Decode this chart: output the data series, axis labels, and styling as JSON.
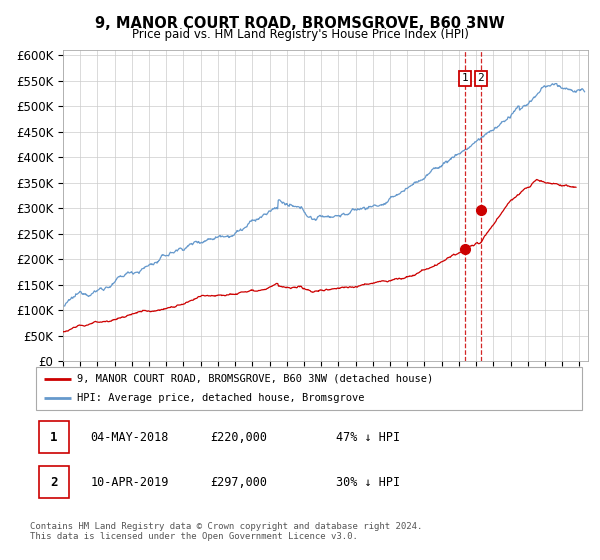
{
  "title": "9, MANOR COURT ROAD, BROMSGROVE, B60 3NW",
  "subtitle": "Price paid vs. HM Land Registry's House Price Index (HPI)",
  "ylabel_ticks": [
    "£0",
    "£50K",
    "£100K",
    "£150K",
    "£200K",
    "£250K",
    "£300K",
    "£350K",
    "£400K",
    "£450K",
    "£500K",
    "£550K",
    "£600K"
  ],
  "ytick_values": [
    0,
    50000,
    100000,
    150000,
    200000,
    250000,
    300000,
    350000,
    400000,
    450000,
    500000,
    550000,
    600000
  ],
  "ylim": [
    0,
    610000
  ],
  "xlim_start": 1995.0,
  "xlim_end": 2025.5,
  "hpi_color": "#6699cc",
  "price_color": "#cc0000",
  "vline_color": "#cc0000",
  "marker1_date": 2018.37,
  "marker1_price": 220000,
  "marker2_date": 2019.28,
  "marker2_price": 297000,
  "legend_label1": "9, MANOR COURT ROAD, BROMSGROVE, B60 3NW (detached house)",
  "legend_label2": "HPI: Average price, detached house, Bromsgrove",
  "table_row1": [
    "1",
    "04-MAY-2018",
    "£220,000",
    "47% ↓ HPI"
  ],
  "table_row2": [
    "2",
    "10-APR-2019",
    "£297,000",
    "30% ↓ HPI"
  ],
  "footnote": "Contains HM Land Registry data © Crown copyright and database right 2024.\nThis data is licensed under the Open Government Licence v3.0.",
  "background_color": "#ffffff",
  "grid_color": "#cccccc"
}
